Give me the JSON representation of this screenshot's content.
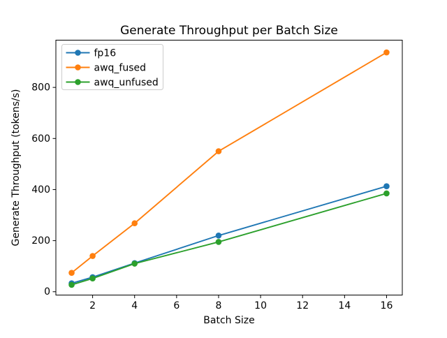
{
  "chart_data": {
    "type": "line",
    "title": "Generate Throughput per Batch Size",
    "xlabel": "Batch Size",
    "ylabel": "Generate Throughput (tokens/s)",
    "x": [
      1,
      2,
      4,
      8,
      16
    ],
    "series": [
      {
        "name": "fp16",
        "color": "#1f77b4",
        "values": [
          33,
          57,
          112,
          220,
          413
        ]
      },
      {
        "name": "awq_fused",
        "color": "#ff7f0e",
        "values": [
          74,
          140,
          268,
          550,
          937
        ]
      },
      {
        "name": "awq_unfused",
        "color": "#2ca02c",
        "values": [
          27,
          52,
          110,
          195,
          385
        ]
      }
    ],
    "xticks": [
      2,
      4,
      6,
      8,
      10,
      12,
      14,
      16
    ],
    "yticks": [
      0,
      200,
      400,
      600,
      800
    ],
    "xlim": [
      0.25,
      16.75
    ],
    "ylim": [
      -13,
      985
    ],
    "grid": false,
    "marker": "o",
    "legend_position": "upper left",
    "colors": {
      "axes_edge": "#000000",
      "legend_border": "#cccccc",
      "background": "#ffffff"
    }
  }
}
